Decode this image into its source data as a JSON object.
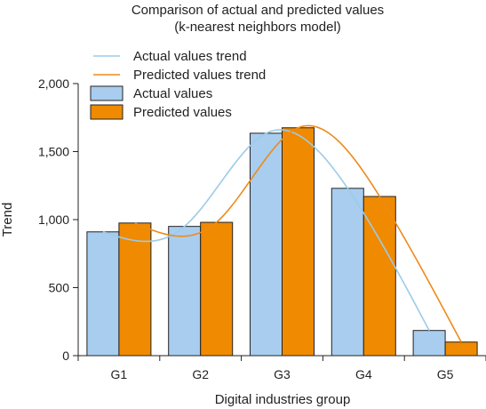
{
  "chart_data": {
    "type": "bar",
    "title": "Comparison of actual and predicted values",
    "subtitle": "(k-nearest neighbors model)",
    "xlabel": "Digital industries group",
    "ylabel": "Trend",
    "categories": [
      "G1",
      "G2",
      "G3",
      "G4",
      "G5"
    ],
    "ylim": [
      0,
      2000
    ],
    "yticks": [
      0,
      500,
      1000,
      1500,
      2000
    ],
    "ytick_labels": [
      "0",
      "500",
      "1,000",
      "1,500",
      "2,000"
    ],
    "grid": false,
    "legend_position": "top-left",
    "series": [
      {
        "name": "Actual values",
        "kind": "bar",
        "color": "#a8cdef",
        "values": [
          910,
          950,
          1635,
          1230,
          185
        ]
      },
      {
        "name": "Predicted values",
        "kind": "bar",
        "color": "#f08a00",
        "values": [
          975,
          980,
          1675,
          1170,
          100
        ]
      },
      {
        "name": "Actual values trend",
        "kind": "line",
        "color": "#9ccbe8",
        "values": [
          910,
          950,
          1635,
          1230,
          185
        ]
      },
      {
        "name": "Predicted values trend",
        "kind": "line",
        "color": "#ee8a1a",
        "values": [
          975,
          980,
          1675,
          1170,
          100
        ]
      }
    ],
    "legend_order": [
      "Actual values trend",
      "Predicted values trend",
      "Actual values",
      "Predicted values"
    ]
  }
}
